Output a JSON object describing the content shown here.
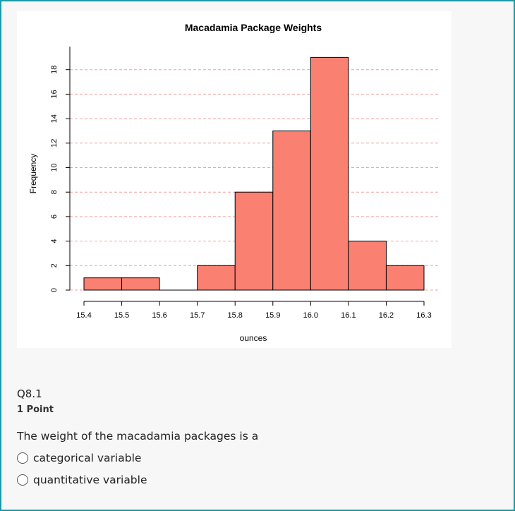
{
  "chart_data": {
    "type": "bar",
    "title": "Macadamia Package Weights",
    "xlabel": "ounces",
    "ylabel": "Frequency",
    "bin_edges": [
      15.4,
      15.5,
      15.6,
      15.7,
      15.8,
      15.9,
      16.0,
      16.1,
      16.2,
      16.3
    ],
    "x_tick_labels": [
      "15.4",
      "15.5",
      "15.6",
      "15.7",
      "15.8",
      "15.9",
      "16.0",
      "16.1",
      "16.2",
      "16.3"
    ],
    "values": [
      1,
      1,
      0,
      2,
      8,
      13,
      19,
      4,
      2
    ],
    "y_ticks": [
      "0",
      "2",
      "4",
      "6",
      "8",
      "10",
      "12",
      "14",
      "16",
      "18"
    ],
    "ylim": [
      0,
      19
    ],
    "grid": "horizontal dashed",
    "colors": {
      "bar": "#fa8072",
      "grid": "#f4a0a0"
    }
  },
  "question": {
    "number": "Q8.1",
    "points": "1 Point",
    "text": "The weight of the macadamia packages is a",
    "options": [
      "categorical variable",
      "quantitative variable"
    ]
  }
}
